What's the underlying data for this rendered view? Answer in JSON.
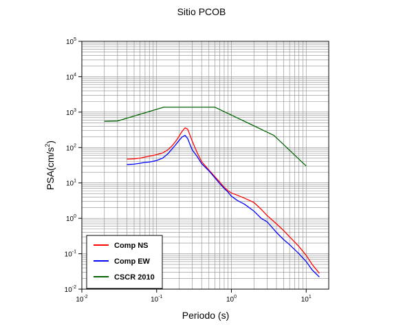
{
  "chart_data": {
    "type": "line",
    "title": "Sitio PCOB",
    "xlabel": "Periodo (s)",
    "ylabel_base": "PSA(cm/s",
    "ylabel_exp": "2",
    "ylabel_end": ")",
    "x_scale": "log",
    "y_scale": "log",
    "xlim": [
      0.01,
      20
    ],
    "ylim": [
      0.01,
      100000
    ],
    "grid": true,
    "legend_position": "bottom-left",
    "x_ticks": [
      {
        "value": 0.01,
        "base": "10",
        "exp": "-2"
      },
      {
        "value": 0.1,
        "base": "10",
        "exp": "-1"
      },
      {
        "value": 1,
        "base": "10",
        "exp": "0"
      },
      {
        "value": 10,
        "base": "10",
        "exp": "1"
      }
    ],
    "y_ticks": [
      {
        "value": 0.01,
        "base": "10",
        "exp": "-2"
      },
      {
        "value": 0.1,
        "base": "10",
        "exp": "-1"
      },
      {
        "value": 1,
        "base": "10",
        "exp": "0"
      },
      {
        "value": 10,
        "base": "10",
        "exp": "1"
      },
      {
        "value": 100,
        "base": "10",
        "exp": "2"
      },
      {
        "value": 1000,
        "base": "10",
        "exp": "3"
      },
      {
        "value": 10000,
        "base": "10",
        "exp": "4"
      },
      {
        "value": 100000,
        "base": "10",
        "exp": "5"
      }
    ],
    "series": [
      {
        "name": "Comp NS",
        "color": "#ff0000",
        "x": [
          0.04,
          0.05,
          0.06,
          0.07,
          0.08,
          0.09,
          0.1,
          0.12,
          0.14,
          0.16,
          0.18,
          0.2,
          0.22,
          0.24,
          0.26,
          0.28,
          0.3,
          0.35,
          0.4,
          0.5,
          0.6,
          0.7,
          0.8,
          0.9,
          1.0,
          1.2,
          1.5,
          2.0,
          2.5,
          3.0,
          4.0,
          5.0,
          6.0,
          8.0,
          10.0,
          12.0,
          15.0
        ],
        "y": [
          47,
          48,
          50,
          54,
          57,
          60,
          63,
          70,
          85,
          110,
          150,
          210,
          290,
          360,
          330,
          220,
          150,
          70,
          40,
          23,
          15,
          10.5,
          7.5,
          6,
          5.2,
          4.5,
          3.7,
          2.8,
          1.8,
          1.2,
          0.7,
          0.45,
          0.3,
          0.16,
          0.09,
          0.05,
          0.028
        ]
      },
      {
        "name": "Comp EW",
        "color": "#0000ff",
        "x": [
          0.04,
          0.05,
          0.06,
          0.07,
          0.08,
          0.09,
          0.1,
          0.12,
          0.14,
          0.16,
          0.18,
          0.2,
          0.22,
          0.24,
          0.26,
          0.28,
          0.3,
          0.35,
          0.4,
          0.5,
          0.6,
          0.7,
          0.8,
          0.9,
          1.0,
          1.2,
          1.5,
          2.0,
          2.5,
          3.0,
          4.0,
          5.0,
          6.0,
          8.0,
          10.0,
          12.0,
          15.0
        ],
        "y": [
          33,
          34,
          36,
          38,
          39,
          41,
          43,
          50,
          65,
          90,
          120,
          160,
          200,
          220,
          180,
          120,
          85,
          55,
          35,
          22,
          14,
          9.5,
          7,
          5.5,
          4.2,
          3.2,
          2.5,
          1.6,
          1.0,
          0.8,
          0.4,
          0.25,
          0.18,
          0.1,
          0.06,
          0.035,
          0.022
        ]
      },
      {
        "name": "CSCR 2010",
        "color": "#006400",
        "x": [
          0.02,
          0.03,
          0.125,
          0.6,
          3.7,
          10.0
        ],
        "y": [
          550,
          560,
          1380,
          1380,
          220,
          30
        ]
      }
    ]
  }
}
